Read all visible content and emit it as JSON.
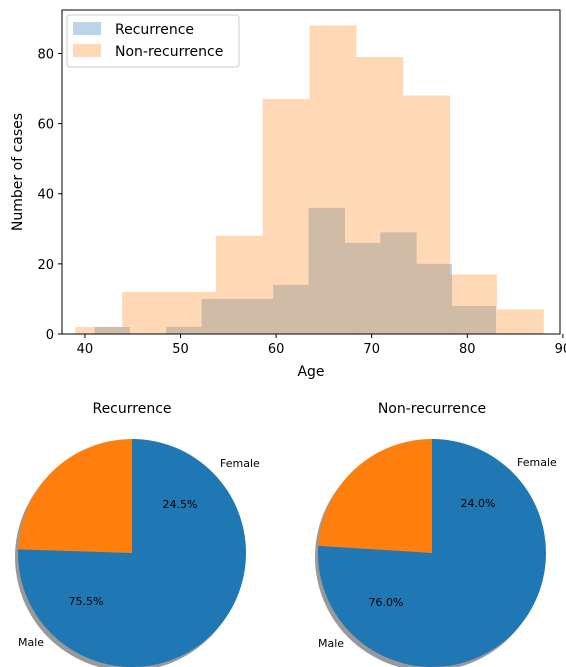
{
  "chart_data": [
    {
      "type": "histogram",
      "xlabel": "Age",
      "ylabel": "Number of cases",
      "xlim": [
        37.6,
        89.7
      ],
      "ylim": [
        0,
        92.4
      ],
      "xticks": [
        40,
        50,
        60,
        70,
        80,
        90
      ],
      "yticks": [
        0,
        20,
        40,
        60,
        80
      ],
      "legend_position": "top-left",
      "series": [
        {
          "name": "Recurrence",
          "color": "#1f77b4",
          "alpha": 0.3,
          "bins": [
            {
              "x0": 41.0,
              "x1": 44.7,
              "count": 2
            },
            {
              "x0": 44.7,
              "x1": 48.5,
              "count": 0
            },
            {
              "x0": 48.5,
              "x1": 52.2,
              "count": 2
            },
            {
              "x0": 52.2,
              "x1": 56.0,
              "count": 10
            },
            {
              "x0": 56.0,
              "x1": 59.7,
              "count": 10
            },
            {
              "x0": 59.7,
              "x1": 63.4,
              "count": 14
            },
            {
              "x0": 63.4,
              "x1": 67.2,
              "count": 36
            },
            {
              "x0": 67.2,
              "x1": 70.9,
              "count": 26
            },
            {
              "x0": 70.9,
              "x1": 74.7,
              "count": 29
            },
            {
              "x0": 74.7,
              "x1": 78.4,
              "count": 20
            },
            {
              "x0": 78.4,
              "x1": 83.0,
              "count": 8
            }
          ]
        },
        {
          "name": "Non-recurrence",
          "color": "#ff7f0e",
          "alpha": 0.3,
          "bins": [
            {
              "x0": 39.0,
              "x1": 43.9,
              "count": 2
            },
            {
              "x0": 43.9,
              "x1": 48.8,
              "count": 12
            },
            {
              "x0": 48.8,
              "x1": 53.7,
              "count": 12
            },
            {
              "x0": 53.7,
              "x1": 58.6,
              "count": 28
            },
            {
              "x0": 58.6,
              "x1": 63.5,
              "count": 67
            },
            {
              "x0": 63.5,
              "x1": 68.4,
              "count": 88
            },
            {
              "x0": 68.4,
              "x1": 73.3,
              "count": 79
            },
            {
              "x0": 73.3,
              "x1": 78.2,
              "count": 68
            },
            {
              "x0": 78.2,
              "x1": 83.1,
              "count": 17
            },
            {
              "x0": 83.1,
              "x1": 88.0,
              "count": 7
            }
          ]
        }
      ]
    },
    {
      "type": "pie",
      "title": "Recurrence",
      "start_angle_deg": 90,
      "shadow": true,
      "slices": [
        {
          "label": "Female",
          "value": 24.5,
          "pct_label": "24.5%",
          "color": "#ff7f0e"
        },
        {
          "label": "Male",
          "value": 75.5,
          "pct_label": "75.5%",
          "color": "#1f77b4"
        }
      ]
    },
    {
      "type": "pie",
      "title": "Non-recurrence",
      "start_angle_deg": 90,
      "shadow": true,
      "slices": [
        {
          "label": "Female",
          "value": 24.0,
          "pct_label": "24.0%",
          "color": "#ff7f0e"
        },
        {
          "label": "Male",
          "value": 76.0,
          "pct_label": "76.0%",
          "color": "#1f77b4"
        }
      ]
    }
  ]
}
